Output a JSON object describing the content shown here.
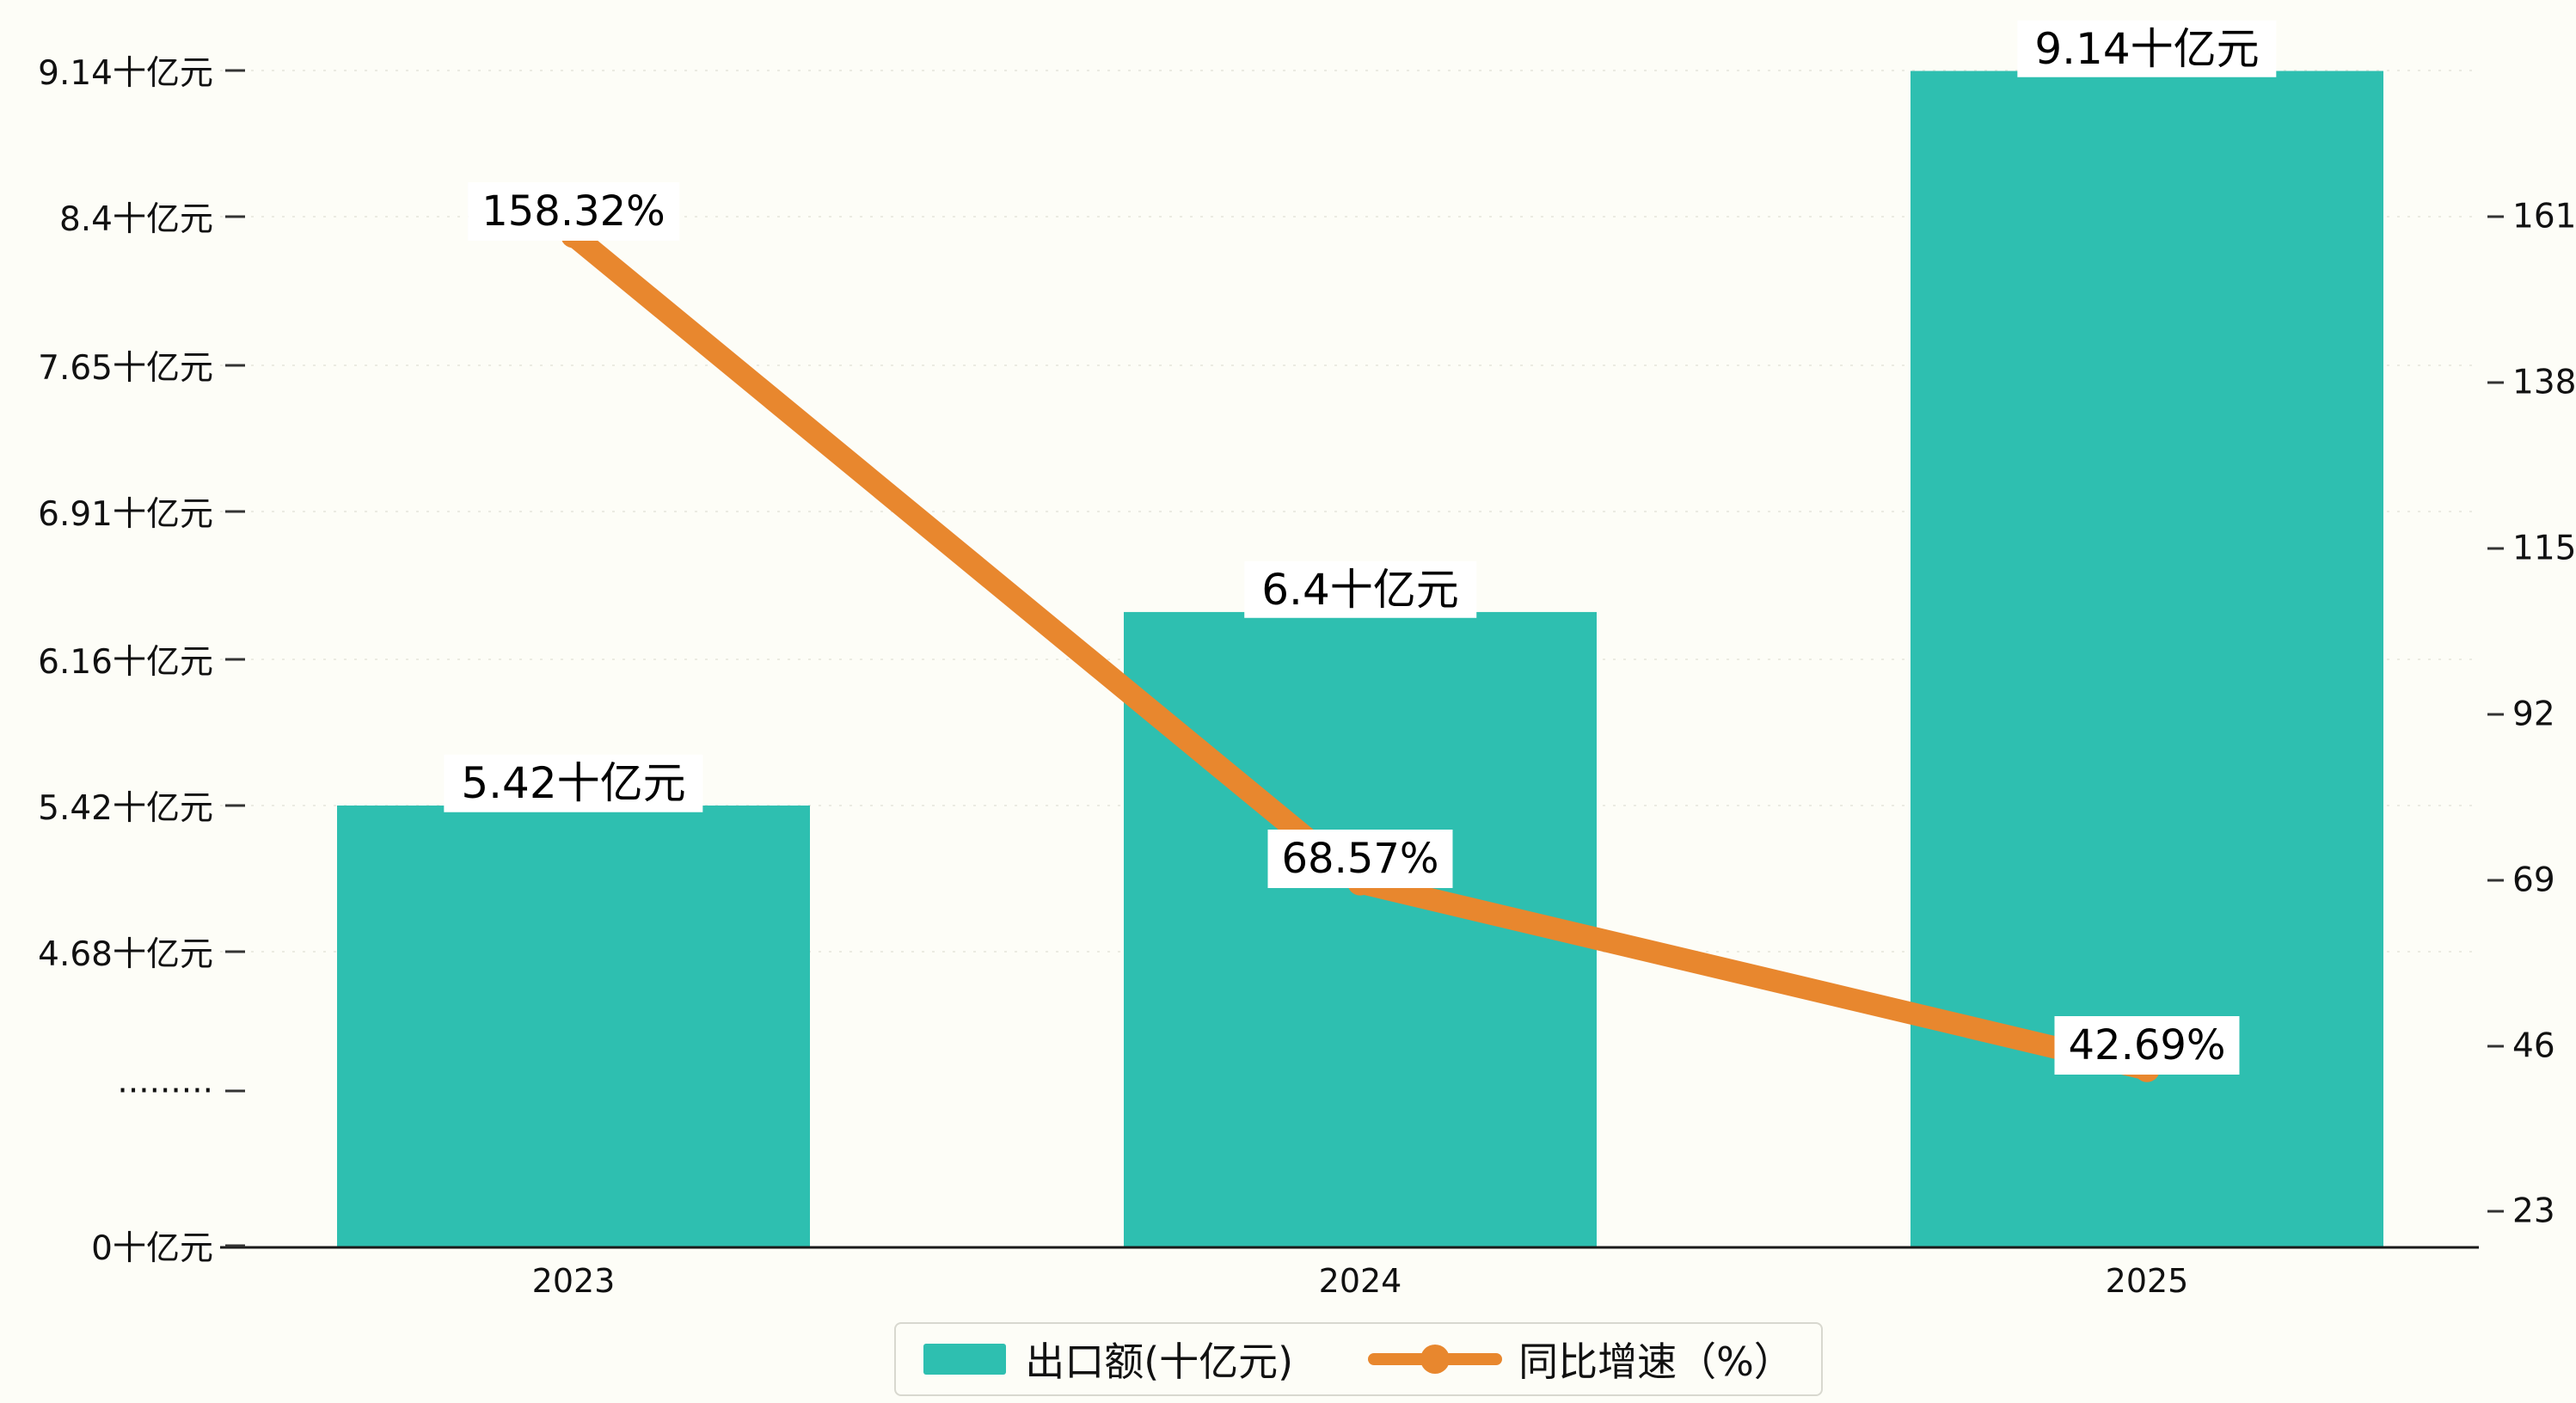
{
  "chart_data": {
    "type": "bar",
    "combo": "bar+line dual-axis",
    "title": "",
    "categories": [
      "2023",
      "2024",
      "2025"
    ],
    "series": [
      {
        "name": "出口额(十亿元)",
        "type": "bar",
        "axis": "left",
        "color": "#2ebfb0",
        "values": [
          5.42,
          6.4,
          9.14
        ],
        "value_labels": [
          "5.42十亿元",
          "6.4十亿元",
          "9.14十亿元"
        ]
      },
      {
        "name": "同比增速（%）",
        "type": "line",
        "axis": "right",
        "color": "#e8872e",
        "values": [
          158.32,
          68.57,
          42.69
        ],
        "value_labels": [
          "158.32%",
          "68.57%",
          "42.69%"
        ]
      }
    ],
    "left_axis": {
      "unit": "十亿元",
      "broken_axis": true,
      "tick_labels": [
        "9.14十亿元",
        "8.4十亿元",
        "7.65十亿元",
        "6.91十亿元",
        "6.16十亿元",
        "5.42十亿元",
        "4.68十亿元",
        "·········",
        "0十亿元"
      ],
      "tick_values": [
        9.14,
        8.4,
        7.65,
        6.91,
        6.16,
        5.42,
        4.68,
        null,
        0
      ]
    },
    "right_axis": {
      "unit": "%",
      "tick_labels": [
        "161",
        "138",
        "115",
        "92",
        "69",
        "46",
        "23"
      ],
      "tick_values": [
        161,
        138,
        115,
        92,
        69,
        46,
        23
      ],
      "range": [
        23,
        161
      ]
    },
    "legend": {
      "position": "bottom",
      "items": [
        "出口额(十亿元)",
        "同比增速（%）"
      ]
    },
    "grid": true,
    "colors": {
      "bar": "#2ebfb0",
      "line": "#e8872e",
      "background": "#fdfdf7",
      "axis": "#1a1a1a"
    }
  }
}
